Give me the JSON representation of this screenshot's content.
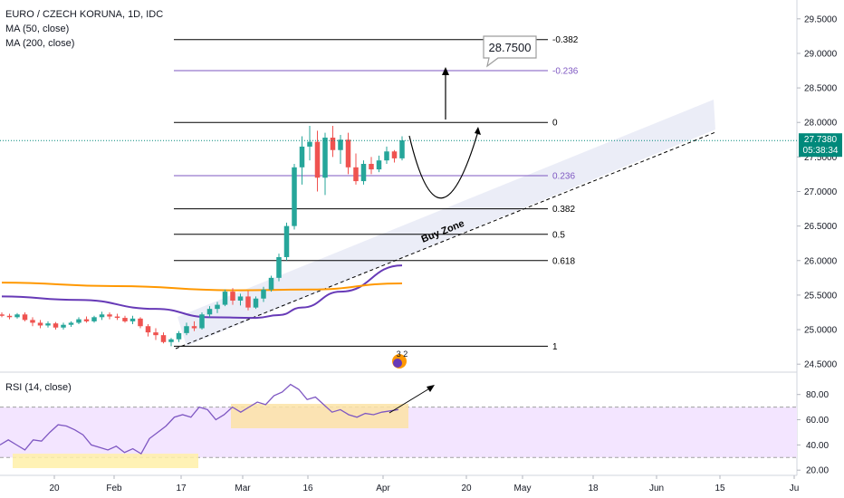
{
  "legend": {
    "symbol": "EURO / CZECH KORUNA, 1D, IDC",
    "ma50": "MA (50, close)",
    "ma200": "MA (200, close)",
    "rsi": "RSI (14, close)"
  },
  "price_tag": {
    "value": "27.7380",
    "countdown": "05:38:34"
  },
  "target_callout": "28.7500",
  "buy_zone_label": "Buy Zone",
  "event_badge": "3 2",
  "colors": {
    "up": "#26a69a",
    "down": "#ef5350",
    "ma50": "#673ab7",
    "ma200": "#ff9800",
    "fib_black": "#000000",
    "fib_purple": "#7e57c2",
    "rsi": "#7e57c2",
    "rsi_band": "#f3e5ff",
    "highlight": "#fff0a8",
    "price_tag": "#00897b",
    "grid_dots": "#26a69a"
  },
  "chart_data": [
    {
      "type": "candlestick",
      "y_axis_ticks": [
        "29.5000",
        "29.0000",
        "28.5000",
        "28.0000",
        "27.5000",
        "27.0000",
        "26.5000",
        "26.0000",
        "25.5000",
        "25.0000",
        "24.5000"
      ],
      "x_axis_ticks": [
        "20",
        "Feb",
        "17",
        "Mar",
        "16",
        "Apr",
        "20",
        "May",
        "18",
        "Jun",
        "15",
        "Ju"
      ],
      "ylim": [
        24.45,
        29.55
      ],
      "candles": [
        [
          25.22,
          25.25,
          25.18,
          25.2
        ],
        [
          25.2,
          25.23,
          25.15,
          25.18
        ],
        [
          25.18,
          25.24,
          25.16,
          25.22
        ],
        [
          25.22,
          25.25,
          25.12,
          25.14
        ],
        [
          25.14,
          25.18,
          25.05,
          25.1
        ],
        [
          25.1,
          25.14,
          25.02,
          25.06
        ],
        [
          25.06,
          25.12,
          25.03,
          25.09
        ],
        [
          25.09,
          25.11,
          25.0,
          25.03
        ],
        [
          25.03,
          25.1,
          25.0,
          25.07
        ],
        [
          25.07,
          25.12,
          25.04,
          25.1
        ],
        [
          25.1,
          25.18,
          25.08,
          25.15
        ],
        [
          25.15,
          25.19,
          25.1,
          25.12
        ],
        [
          25.12,
          25.2,
          25.1,
          25.18
        ],
        [
          25.18,
          25.26,
          25.14,
          25.22
        ],
        [
          25.22,
          25.25,
          25.15,
          25.19
        ],
        [
          25.19,
          25.23,
          25.14,
          25.17
        ],
        [
          25.17,
          25.2,
          25.1,
          25.12
        ],
        [
          25.12,
          25.2,
          25.08,
          25.16
        ],
        [
          25.16,
          25.18,
          25.02,
          25.05
        ],
        [
          25.05,
          25.08,
          24.9,
          24.96
        ],
        [
          24.96,
          25.02,
          24.85,
          24.92
        ],
        [
          24.92,
          24.96,
          24.8,
          24.82
        ],
        [
          24.82,
          24.88,
          24.76,
          24.86
        ],
        [
          24.86,
          24.98,
          24.82,
          24.95
        ],
        [
          24.95,
          25.1,
          24.92,
          25.05
        ],
        [
          25.05,
          25.12,
          24.98,
          25.02
        ],
        [
          25.02,
          25.25,
          25.0,
          25.22
        ],
        [
          25.22,
          25.34,
          25.18,
          25.3
        ],
        [
          25.3,
          25.4,
          25.24,
          25.36
        ],
        [
          25.36,
          25.58,
          25.34,
          25.55
        ],
        [
          25.55,
          25.6,
          25.36,
          25.42
        ],
        [
          25.42,
          25.52,
          25.35,
          25.48
        ],
        [
          25.48,
          25.56,
          25.28,
          25.32
        ],
        [
          25.32,
          25.48,
          25.3,
          25.45
        ],
        [
          25.45,
          25.62,
          25.4,
          25.58
        ],
        [
          25.58,
          25.78,
          25.55,
          25.75
        ],
        [
          25.75,
          26.1,
          25.7,
          26.05
        ],
        [
          26.05,
          26.55,
          26.0,
          26.5
        ],
        [
          26.5,
          27.4,
          26.45,
          27.35
        ],
        [
          27.35,
          27.8,
          27.1,
          27.65
        ],
        [
          27.65,
          27.95,
          27.45,
          27.72
        ],
        [
          27.72,
          27.88,
          27.0,
          27.2
        ],
        [
          27.2,
          27.85,
          26.95,
          27.78
        ],
        [
          27.78,
          27.95,
          27.5,
          27.6
        ],
        [
          27.6,
          27.82,
          27.4,
          27.75
        ],
        [
          27.75,
          27.85,
          27.25,
          27.35
        ],
        [
          27.35,
          27.55,
          27.1,
          27.15
        ],
        [
          27.15,
          27.45,
          27.1,
          27.4
        ],
        [
          27.4,
          27.5,
          27.25,
          27.32
        ],
        [
          27.32,
          27.52,
          27.28,
          27.45
        ],
        [
          27.45,
          27.65,
          27.4,
          27.58
        ],
        [
          27.58,
          27.6,
          27.42,
          27.48
        ],
        [
          27.48,
          27.8,
          27.45,
          27.74
        ]
      ]
    },
    {
      "type": "line",
      "series": [
        {
          "name": "MA (50, close)",
          "x": [
            0,
            10,
            20,
            27,
            33,
            36,
            39,
            44,
            52
          ],
          "values": [
            25.48,
            25.43,
            25.3,
            25.18,
            25.17,
            25.21,
            25.32,
            25.55,
            25.93
          ]
        },
        {
          "name": "MA (200, close)",
          "x": [
            0,
            15,
            30,
            40,
            52
          ],
          "values": [
            25.68,
            25.63,
            25.57,
            25.58,
            25.67
          ]
        }
      ]
    },
    {
      "type": "fibonacci",
      "levels": [
        {
          "label": "-0.382",
          "price": 29.2
        },
        {
          "label": "-0.236",
          "price": 28.75
        },
        {
          "label": "0",
          "price": 28.0
        },
        {
          "label": "0.236",
          "price": 27.23
        },
        {
          "label": "0.382",
          "price": 26.75
        },
        {
          "label": "0.5",
          "price": 26.38
        },
        {
          "label": "0.618",
          "price": 26.0
        },
        {
          "label": "1",
          "price": 24.76
        }
      ]
    },
    {
      "type": "line",
      "series": [
        {
          "name": "RSI (14, close)",
          "values": [
            40,
            44,
            40,
            36,
            44,
            43,
            50,
            56,
            55,
            52,
            48,
            40,
            38,
            36,
            39,
            34,
            37,
            33,
            45,
            50,
            55,
            62,
            64,
            62,
            70,
            68,
            60,
            64,
            70,
            66,
            70,
            74,
            72,
            79,
            82,
            88,
            84,
            76,
            78,
            72,
            66,
            68,
            64,
            62,
            65,
            64,
            66,
            67,
            68
          ]
        }
      ],
      "y_axis_ticks": [
        "80.00",
        "60.00",
        "40.00",
        "20.00"
      ],
      "ylim": [
        18,
        92
      ],
      "band": [
        30,
        70
      ]
    }
  ]
}
